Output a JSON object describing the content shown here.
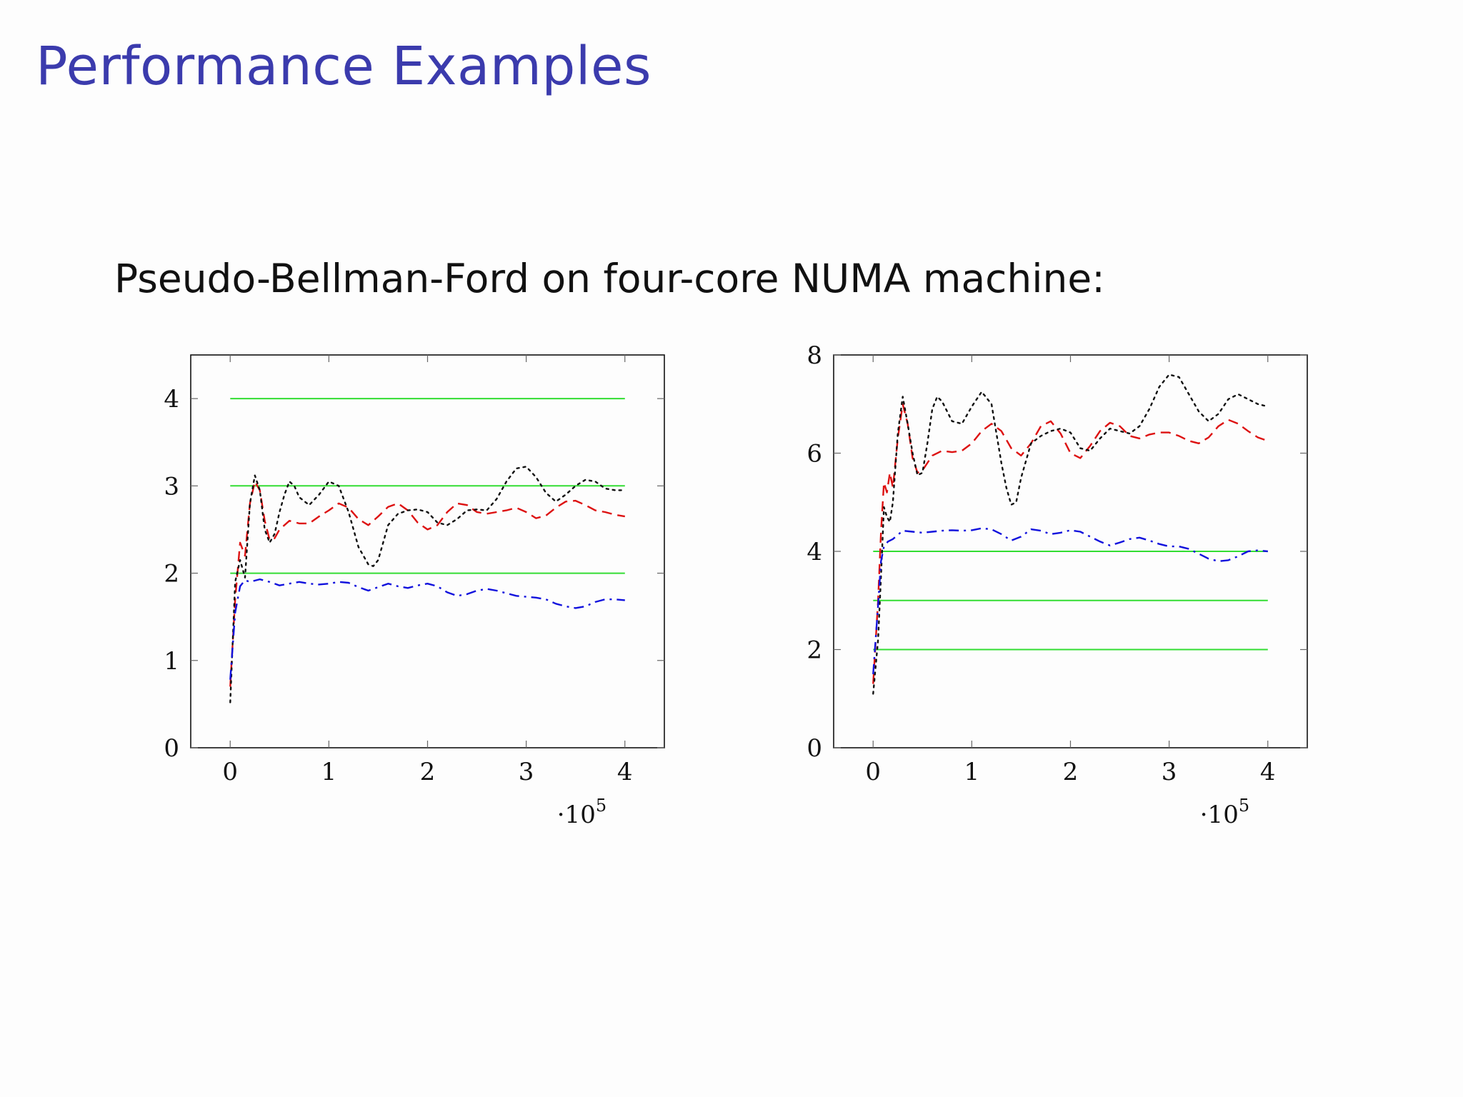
{
  "slide": {
    "title": "Performance Examples",
    "subtitle": "Pseudo-Bellman-Ford on four-core NUMA machine:"
  },
  "colors": {
    "title": "#3b3bad",
    "green": "#33dd33",
    "red": "#dd1111",
    "blue": "#1111dd",
    "black": "#111111"
  },
  "chart_data": [
    {
      "type": "line",
      "xlim": [
        -40000,
        440000
      ],
      "ylim": [
        0,
        4.5
      ],
      "x_ticks": [
        0,
        100000,
        200000,
        300000,
        400000
      ],
      "x_tick_labels": [
        "0",
        "1",
        "2",
        "3",
        "4"
      ],
      "y_ticks": [
        0,
        1,
        2,
        3,
        4
      ],
      "y_tick_labels": [
        "0",
        "1",
        "2",
        "3",
        "4"
      ],
      "x_multiplier": {
        "base": "·10",
        "exponent": "5"
      },
      "grid": false,
      "series": [
        {
          "style": "solid",
          "color": "#33dd33",
          "x": [
            0,
            400000
          ],
          "y": [
            4,
            4
          ]
        },
        {
          "style": "solid",
          "color": "#33dd33",
          "x": [
            0,
            400000
          ],
          "y": [
            3,
            3
          ]
        },
        {
          "style": "solid",
          "color": "#33dd33",
          "x": [
            0,
            400000
          ],
          "y": [
            2,
            2
          ]
        },
        {
          "style": "dashed",
          "color": "#dd1111",
          "x": [
            0,
            5000,
            10000,
            15000,
            20000,
            25000,
            30000,
            35000,
            40000,
            45000,
            50000,
            60000,
            70000,
            80000,
            90000,
            100000,
            110000,
            120000,
            130000,
            140000,
            150000,
            160000,
            170000,
            180000,
            190000,
            200000,
            210000,
            220000,
            230000,
            240000,
            250000,
            260000,
            270000,
            280000,
            290000,
            300000,
            310000,
            320000,
            330000,
            340000,
            350000,
            360000,
            370000,
            380000,
            390000,
            400000
          ],
          "y": [
            0.7,
            1.7,
            2.35,
            2.2,
            2.8,
            3.05,
            2.95,
            2.6,
            2.38,
            2.4,
            2.5,
            2.6,
            2.57,
            2.57,
            2.65,
            2.72,
            2.8,
            2.75,
            2.62,
            2.55,
            2.65,
            2.76,
            2.8,
            2.72,
            2.58,
            2.5,
            2.55,
            2.7,
            2.8,
            2.78,
            2.7,
            2.68,
            2.7,
            2.72,
            2.75,
            2.7,
            2.63,
            2.66,
            2.75,
            2.82,
            2.83,
            2.78,
            2.72,
            2.7,
            2.67,
            2.65
          ]
        },
        {
          "style": "dotted",
          "color": "#111111",
          "x": [
            0,
            5000,
            10000,
            15000,
            20000,
            25000,
            30000,
            35000,
            40000,
            45000,
            50000,
            55000,
            60000,
            65000,
            70000,
            80000,
            90000,
            100000,
            110000,
            120000,
            130000,
            140000,
            145000,
            150000,
            160000,
            170000,
            180000,
            190000,
            200000,
            210000,
            220000,
            230000,
            240000,
            250000,
            260000,
            270000,
            280000,
            290000,
            300000,
            310000,
            320000,
            330000,
            340000,
            350000,
            360000,
            370000,
            380000,
            390000,
            400000
          ],
          "y": [
            0.52,
            1.9,
            2.15,
            1.95,
            2.8,
            3.12,
            2.95,
            2.5,
            2.35,
            2.45,
            2.7,
            2.9,
            3.05,
            3.0,
            2.87,
            2.78,
            2.9,
            3.05,
            3.0,
            2.7,
            2.3,
            2.1,
            2.08,
            2.15,
            2.55,
            2.68,
            2.72,
            2.73,
            2.7,
            2.58,
            2.55,
            2.62,
            2.72,
            2.73,
            2.72,
            2.85,
            3.05,
            3.2,
            3.22,
            3.1,
            2.92,
            2.82,
            2.9,
            3.0,
            3.07,
            3.05,
            2.97,
            2.95,
            2.95
          ]
        },
        {
          "style": "dashdot",
          "color": "#1111dd",
          "x": [
            0,
            5000,
            10000,
            15000,
            20000,
            30000,
            40000,
            50000,
            60000,
            70000,
            80000,
            90000,
            100000,
            110000,
            120000,
            130000,
            140000,
            150000,
            160000,
            170000,
            180000,
            190000,
            200000,
            210000,
            220000,
            230000,
            240000,
            250000,
            260000,
            270000,
            280000,
            290000,
            300000,
            310000,
            320000,
            330000,
            340000,
            350000,
            360000,
            370000,
            380000,
            390000,
            400000
          ],
          "y": [
            0.78,
            1.55,
            1.85,
            1.92,
            1.9,
            1.93,
            1.9,
            1.86,
            1.88,
            1.9,
            1.88,
            1.87,
            1.88,
            1.9,
            1.89,
            1.84,
            1.8,
            1.84,
            1.88,
            1.85,
            1.83,
            1.86,
            1.88,
            1.85,
            1.78,
            1.74,
            1.76,
            1.8,
            1.82,
            1.8,
            1.77,
            1.74,
            1.73,
            1.72,
            1.7,
            1.65,
            1.62,
            1.6,
            1.62,
            1.67,
            1.7,
            1.7,
            1.69
          ]
        }
      ]
    },
    {
      "type": "line",
      "xlim": [
        -40000,
        440000
      ],
      "ylim": [
        0,
        8
      ],
      "x_ticks": [
        0,
        100000,
        200000,
        300000,
        400000
      ],
      "x_tick_labels": [
        "0",
        "1",
        "2",
        "3",
        "4"
      ],
      "y_ticks": [
        0,
        2,
        4,
        6,
        8
      ],
      "y_tick_labels": [
        "0",
        "2",
        "4",
        "6",
        "8"
      ],
      "x_multiplier": {
        "base": "·10",
        "exponent": "5"
      },
      "grid": false,
      "series": [
        {
          "style": "solid",
          "color": "#33dd33",
          "x": [
            0,
            400000
          ],
          "y": [
            4,
            4
          ]
        },
        {
          "style": "solid",
          "color": "#33dd33",
          "x": [
            0,
            400000
          ],
          "y": [
            3,
            3
          ]
        },
        {
          "style": "solid",
          "color": "#33dd33",
          "x": [
            0,
            400000
          ],
          "y": [
            2,
            2
          ]
        },
        {
          "style": "dashed",
          "color": "#dd1111",
          "x": [
            0,
            5000,
            8000,
            11000,
            14000,
            17000,
            20000,
            25000,
            30000,
            35000,
            40000,
            45000,
            50000,
            60000,
            70000,
            80000,
            90000,
            100000,
            110000,
            120000,
            130000,
            140000,
            150000,
            160000,
            170000,
            180000,
            190000,
            200000,
            210000,
            220000,
            230000,
            240000,
            250000,
            260000,
            270000,
            280000,
            290000,
            300000,
            310000,
            320000,
            330000,
            340000,
            350000,
            360000,
            370000,
            380000,
            390000,
            400000
          ],
          "y": [
            1.3,
            3.0,
            4.4,
            5.4,
            5.2,
            5.6,
            5.3,
            6.3,
            7.0,
            6.6,
            5.9,
            5.6,
            5.65,
            5.95,
            6.05,
            6.02,
            6.05,
            6.2,
            6.45,
            6.6,
            6.45,
            6.1,
            5.95,
            6.2,
            6.55,
            6.65,
            6.4,
            6.0,
            5.9,
            6.15,
            6.45,
            6.62,
            6.55,
            6.35,
            6.3,
            6.38,
            6.42,
            6.42,
            6.35,
            6.25,
            6.2,
            6.32,
            6.55,
            6.68,
            6.6,
            6.45,
            6.32,
            6.25
          ]
        },
        {
          "style": "dotted",
          "color": "#111111",
          "x": [
            0,
            5000,
            8000,
            11000,
            14000,
            17000,
            20000,
            25000,
            30000,
            35000,
            40000,
            45000,
            50000,
            55000,
            60000,
            65000,
            70000,
            80000,
            90000,
            100000,
            110000,
            120000,
            130000,
            135000,
            140000,
            145000,
            150000,
            160000,
            170000,
            180000,
            190000,
            200000,
            210000,
            220000,
            230000,
            240000,
            250000,
            260000,
            270000,
            280000,
            290000,
            300000,
            310000,
            320000,
            330000,
            340000,
            350000,
            360000,
            370000,
            380000,
            390000,
            400000
          ],
          "y": [
            1.1,
            2.2,
            3.5,
            4.9,
            4.7,
            4.6,
            5.0,
            6.4,
            7.15,
            6.6,
            6.0,
            5.55,
            5.6,
            6.2,
            6.9,
            7.15,
            7.05,
            6.65,
            6.6,
            6.95,
            7.25,
            7.0,
            5.8,
            5.3,
            4.95,
            5.0,
            5.5,
            6.2,
            6.35,
            6.45,
            6.5,
            6.42,
            6.1,
            6.05,
            6.3,
            6.5,
            6.45,
            6.4,
            6.55,
            6.9,
            7.35,
            7.6,
            7.55,
            7.2,
            6.85,
            6.65,
            6.8,
            7.1,
            7.2,
            7.1,
            7.0,
            6.95
          ]
        },
        {
          "style": "dashdot",
          "color": "#1111dd",
          "x": [
            0,
            5000,
            8000,
            11000,
            15000,
            20000,
            30000,
            40000,
            50000,
            60000,
            70000,
            80000,
            90000,
            100000,
            110000,
            120000,
            130000,
            140000,
            150000,
            160000,
            170000,
            180000,
            190000,
            200000,
            210000,
            220000,
            230000,
            240000,
            250000,
            260000,
            270000,
            280000,
            290000,
            300000,
            310000,
            320000,
            330000,
            340000,
            350000,
            360000,
            370000,
            380000,
            390000,
            400000
          ],
          "y": [
            1.5,
            2.9,
            3.8,
            4.1,
            4.2,
            4.25,
            4.42,
            4.4,
            4.38,
            4.4,
            4.42,
            4.43,
            4.42,
            4.43,
            4.47,
            4.45,
            4.35,
            4.22,
            4.3,
            4.45,
            4.42,
            4.35,
            4.38,
            4.43,
            4.4,
            4.3,
            4.2,
            4.12,
            4.18,
            4.25,
            4.28,
            4.22,
            4.15,
            4.1,
            4.1,
            4.05,
            3.95,
            3.85,
            3.8,
            3.82,
            3.9,
            4.0,
            4.02,
            4.0
          ]
        }
      ]
    }
  ]
}
